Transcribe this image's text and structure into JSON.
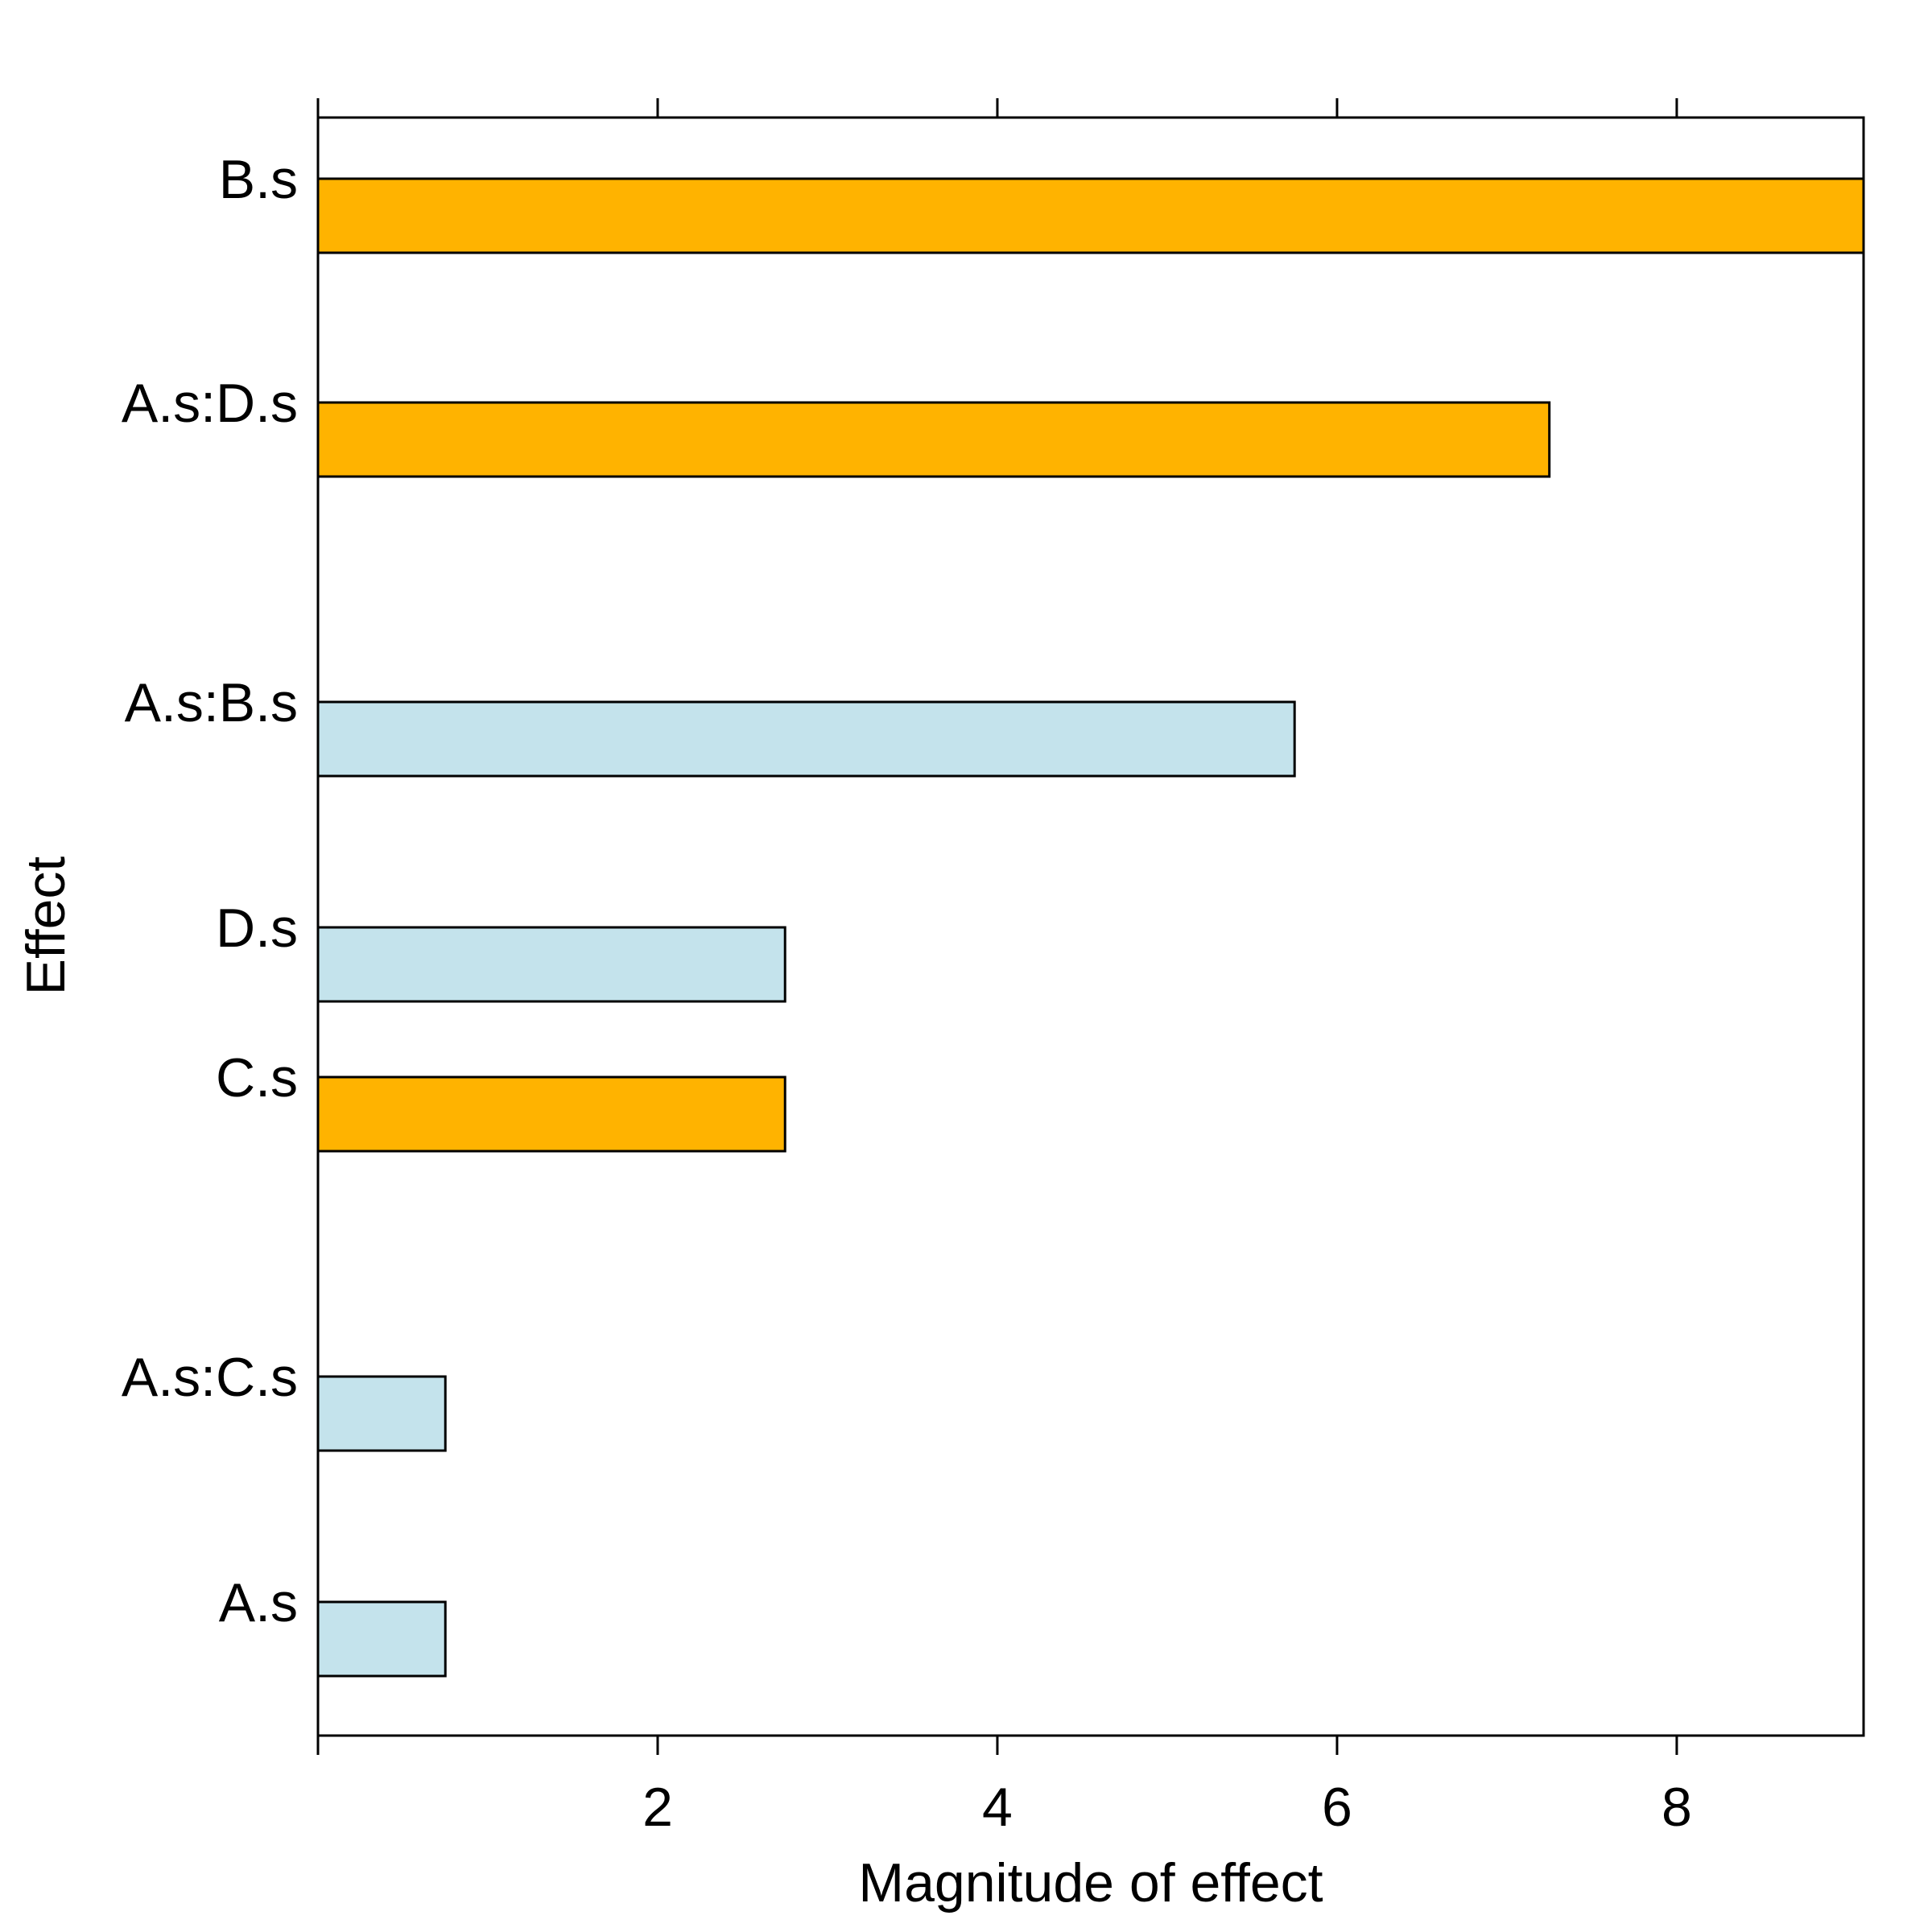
{
  "chart_data": {
    "type": "bar",
    "orientation": "horizontal",
    "xlabel": "Magnitude of effect",
    "ylabel": "Effect",
    "xlim": [
      0,
      9.1
    ],
    "xticks": [
      2,
      4,
      6,
      8
    ],
    "categories": [
      "B.s",
      "A.s:D.s",
      "A.s:B.s",
      "D.s",
      "C.s",
      "A.s:C.s",
      "A.s"
    ],
    "values": [
      9.1,
      7.25,
      5.75,
      2.75,
      2.75,
      0.75,
      0.75
    ],
    "colors": [
      "#ffb300",
      "#ffb300",
      "#c4e3ec",
      "#c4e3ec",
      "#ffb300",
      "#c4e3ec",
      "#c4e3ec"
    ],
    "grid": false,
    "legend": "none"
  }
}
